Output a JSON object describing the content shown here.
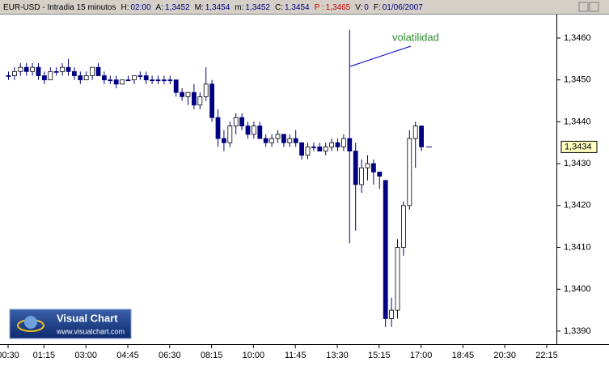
{
  "header": {
    "symbol": "EUR-USD - Intradia 15 minutos",
    "fields": [
      {
        "key": "H:",
        "value": "02:00"
      },
      {
        "key": "A:",
        "value": "1,3452"
      },
      {
        "key": "M:",
        "value": "1,3454"
      },
      {
        "key": "m:",
        "value": "1,3452"
      },
      {
        "key": "C:",
        "value": "1,3454"
      },
      {
        "key": "P :",
        "value": "1,3465"
      },
      {
        "key": "V:",
        "value": "0"
      },
      {
        "key": "F:",
        "value": "01/06/2007"
      }
    ]
  },
  "logo": {
    "name": "Visual Chart",
    "url": "www.visualchart.com"
  },
  "chart_data": {
    "type": "candlestick",
    "annotation": "volatilidad",
    "last_price": {
      "value": 1.3434,
      "label": "1,3434"
    },
    "up_color": "#ffffff",
    "down_color": "#000080",
    "grid": false,
    "ylim": [
      1.33869,
      1.34656
    ],
    "yticks": [
      {
        "value": 1.339,
        "label": "1,3390"
      },
      {
        "value": 1.34,
        "label": "1,3400"
      },
      {
        "value": 1.341,
        "label": "1,3410"
      },
      {
        "value": 1.342,
        "label": "1,3420"
      },
      {
        "value": 1.343,
        "label": "1,3430"
      },
      {
        "value": 1.344,
        "label": "1,3440"
      },
      {
        "value": 1.345,
        "label": "1,3450"
      },
      {
        "value": 1.346,
        "label": "1,3460"
      }
    ],
    "categories": [
      "00:30",
      null,
      null,
      null,
      null,
      null,
      "01:15",
      null,
      null,
      null,
      null,
      null,
      null,
      "03:00",
      null,
      null,
      null,
      null,
      null,
      null,
      "04:45",
      null,
      null,
      null,
      null,
      null,
      null,
      "06:30",
      null,
      null,
      null,
      null,
      null,
      null,
      "08:15",
      null,
      null,
      null,
      null,
      null,
      null,
      "10:00",
      null,
      null,
      null,
      null,
      null,
      null,
      "11:45",
      null,
      null,
      null,
      null,
      null,
      null,
      "13:30",
      null,
      null,
      null,
      null,
      null,
      null,
      "15:15",
      null,
      null,
      null,
      null,
      null,
      null,
      "17:00",
      null,
      null,
      null,
      null,
      null,
      null,
      "18:45",
      null,
      null,
      null,
      null,
      null,
      null,
      "20:30",
      null,
      null,
      null,
      null,
      null,
      null,
      "22:15",
      null
    ],
    "open": [
      1.3451,
      1.3451,
      1.3452,
      1.3453,
      1.3452,
      1.3453,
      1.3451,
      1.345,
      1.3452,
      1.3452,
      1.3453,
      1.3452,
      1.3451,
      1.345,
      1.3451,
      1.3453,
      1.3451,
      1.345,
      1.345,
      1.3449,
      1.345,
      1.345,
      1.3451,
      1.3451,
      1.345,
      1.345,
      1.345,
      1.345,
      1.345,
      1.3447,
      1.3446,
      1.3447,
      1.3444,
      1.3446,
      1.3449,
      1.3441,
      1.3436,
      1.3435,
      1.3439,
      1.3441,
      1.3439,
      1.3437,
      1.3439,
      1.3436,
      1.3435,
      1.3436,
      1.3437,
      1.3435,
      1.3436,
      1.3435,
      1.3432,
      1.3434,
      1.3434,
      1.3433,
      1.3434,
      1.3435,
      1.3434,
      1.3436,
      1.3433,
      1.3425,
      1.3429,
      1.343,
      1.3428,
      1.3426,
      1.3393,
      1.3395,
      1.341,
      1.342,
      1.3436,
      1.3439,
      null,
      null,
      null,
      null,
      null,
      null,
      null,
      null,
      null,
      null,
      null,
      null,
      null,
      null,
      null,
      null,
      null,
      null,
      null,
      null,
      null,
      null
    ],
    "high": [
      1.3452,
      1.3453,
      1.3454,
      1.3454,
      1.3454,
      1.3454,
      1.3452,
      1.3453,
      1.3453,
      1.3454,
      1.3455,
      1.3453,
      1.3452,
      1.3452,
      1.3453,
      1.3454,
      1.3452,
      1.3451,
      1.3451,
      1.345,
      1.3451,
      1.3451,
      1.3452,
      1.3452,
      1.3451,
      1.3451,
      1.3451,
      1.3451,
      1.345,
      1.3448,
      1.3447,
      1.3449,
      1.3447,
      1.3453,
      1.345,
      1.3443,
      1.3438,
      1.344,
      1.3442,
      1.3442,
      1.344,
      1.344,
      1.344,
      1.3437,
      1.3437,
      1.3438,
      1.3437,
      1.3437,
      1.3438,
      1.3435,
      1.3435,
      1.3435,
      1.3435,
      1.3435,
      1.3436,
      1.3436,
      1.3437,
      1.3462,
      1.3435,
      1.3431,
      1.3432,
      1.3431,
      1.3428,
      1.3426,
      1.3398,
      1.3412,
      1.3421,
      1.3438,
      1.344,
      1.3439,
      null,
      null,
      null,
      null,
      null,
      null,
      null,
      null,
      null,
      null,
      null,
      null,
      null,
      null,
      null,
      null,
      null,
      null,
      null,
      null,
      null,
      null
    ],
    "low": [
      1.345,
      1.345,
      1.3451,
      1.3451,
      1.3451,
      1.345,
      1.3449,
      1.345,
      1.3451,
      1.3451,
      1.3451,
      1.345,
      1.3449,
      1.345,
      1.345,
      1.3451,
      1.3449,
      1.3449,
      1.3448,
      1.3449,
      1.345,
      1.3449,
      1.345,
      1.3449,
      1.3449,
      1.3449,
      1.3449,
      1.3449,
      1.3446,
      1.3445,
      1.3444,
      1.3443,
      1.3443,
      1.3445,
      1.344,
      1.3434,
      1.3433,
      1.3434,
      1.3437,
      1.3438,
      1.3436,
      1.3436,
      1.3436,
      1.3434,
      1.3434,
      1.3435,
      1.3434,
      1.3434,
      1.3434,
      1.3431,
      1.3431,
      1.3433,
      1.3433,
      1.3432,
      1.3433,
      1.3433,
      1.3433,
      1.3411,
      1.3414,
      1.3423,
      1.3426,
      1.3425,
      1.3424,
      1.3391,
      1.3391,
      1.3393,
      1.3408,
      1.3419,
      1.3429,
      1.3433,
      null,
      null,
      null,
      null,
      null,
      null,
      null,
      null,
      null,
      null,
      null,
      null,
      null,
      null,
      null,
      null,
      null,
      null,
      null,
      null,
      null,
      null
    ],
    "close": [
      1.3451,
      1.3452,
      1.3453,
      1.3452,
      1.3453,
      1.3451,
      1.345,
      1.3452,
      1.3452,
      1.3453,
      1.3452,
      1.3451,
      1.345,
      1.3451,
      1.3453,
      1.3451,
      1.345,
      1.345,
      1.3449,
      1.345,
      1.345,
      1.3451,
      1.3451,
      1.345,
      1.345,
      1.345,
      1.345,
      1.345,
      1.3447,
      1.3446,
      1.3447,
      1.3444,
      1.3446,
      1.3449,
      1.3441,
      1.3436,
      1.3435,
      1.3439,
      1.3441,
      1.3439,
      1.3437,
      1.3439,
      1.3436,
      1.3435,
      1.3436,
      1.3437,
      1.3435,
      1.3436,
      1.3435,
      1.3432,
      1.3434,
      1.3434,
      1.3433,
      1.3434,
      1.3435,
      1.3434,
      1.3436,
      1.3433,
      1.3425,
      1.3429,
      1.343,
      1.3428,
      1.3427,
      1.3393,
      1.3395,
      1.341,
      1.342,
      1.3436,
      1.3439,
      1.3434,
      null,
      null,
      null,
      null,
      null,
      null,
      null,
      null,
      null,
      null,
      null,
      null,
      null,
      null,
      null,
      null,
      null,
      null,
      null,
      null,
      null,
      null
    ]
  }
}
